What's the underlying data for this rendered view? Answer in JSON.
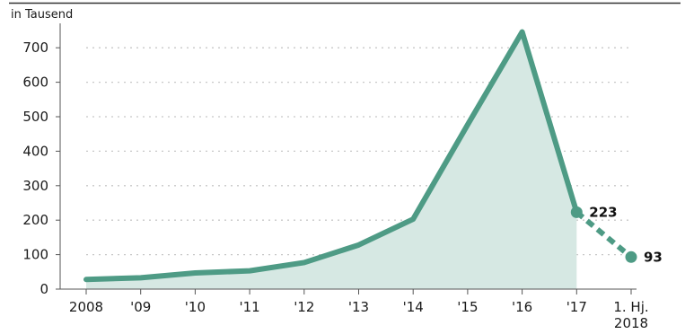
{
  "chart_data": {
    "type": "line",
    "unit_label": "in Tausend",
    "categories": [
      "2008",
      "'09",
      "'10",
      "'11",
      "'12",
      "'13",
      "'14",
      "'15",
      "'16",
      "'17",
      "1. Hj.|2018"
    ],
    "series": [
      {
        "values": [
          28,
          33,
          47,
          53,
          77,
          128,
          203,
          477,
          746,
          223,
          93
        ]
      }
    ],
    "dashed_segment_from_index": 9,
    "labeled_points": [
      {
        "index": 9,
        "label": "223"
      },
      {
        "index": 10,
        "label": "93"
      }
    ],
    "ylim": [
      0,
      750
    ],
    "yticks": [
      0,
      100,
      200,
      300,
      400,
      500,
      600,
      700
    ],
    "grid": true,
    "colors": {
      "line": "#4e9b85",
      "area": "#d6e8e3",
      "grid": "#c8c8c8",
      "axis": "#555555",
      "top_rule": "#333333"
    }
  }
}
